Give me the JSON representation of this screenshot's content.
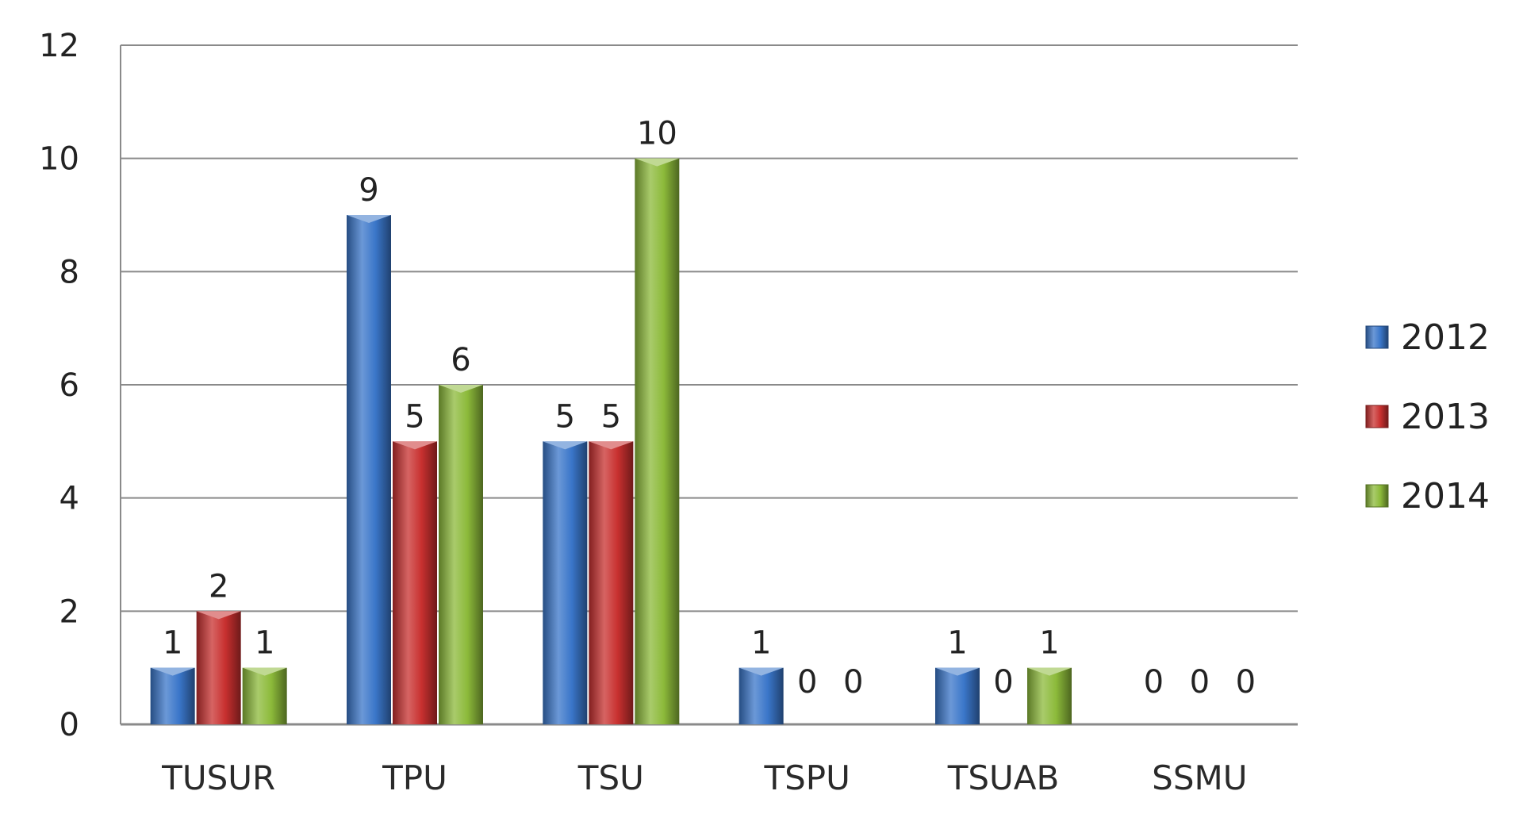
{
  "chart_data": {
    "type": "bar",
    "title": "",
    "xlabel": "",
    "ylabel": "",
    "categories": [
      "TUSUR",
      "TPU",
      "TSU",
      "TSPU",
      "TSUAB",
      "SSMU"
    ],
    "series": [
      {
        "name": "2012",
        "color": "#3a76c9",
        "values": [
          1,
          9,
          5,
          1,
          1,
          0
        ]
      },
      {
        "name": "2013",
        "color": "#c8302f",
        "values": [
          2,
          5,
          5,
          0,
          0,
          0
        ]
      },
      {
        "name": "2014",
        "color": "#8cba3a",
        "values": [
          1,
          6,
          10,
          0,
          1,
          0
        ]
      }
    ],
    "ylim": [
      0,
      12
    ],
    "yticks": [
      0,
      2,
      4,
      6,
      8,
      10,
      12
    ],
    "grid": true,
    "legend_position": "right",
    "data_labels": true
  }
}
